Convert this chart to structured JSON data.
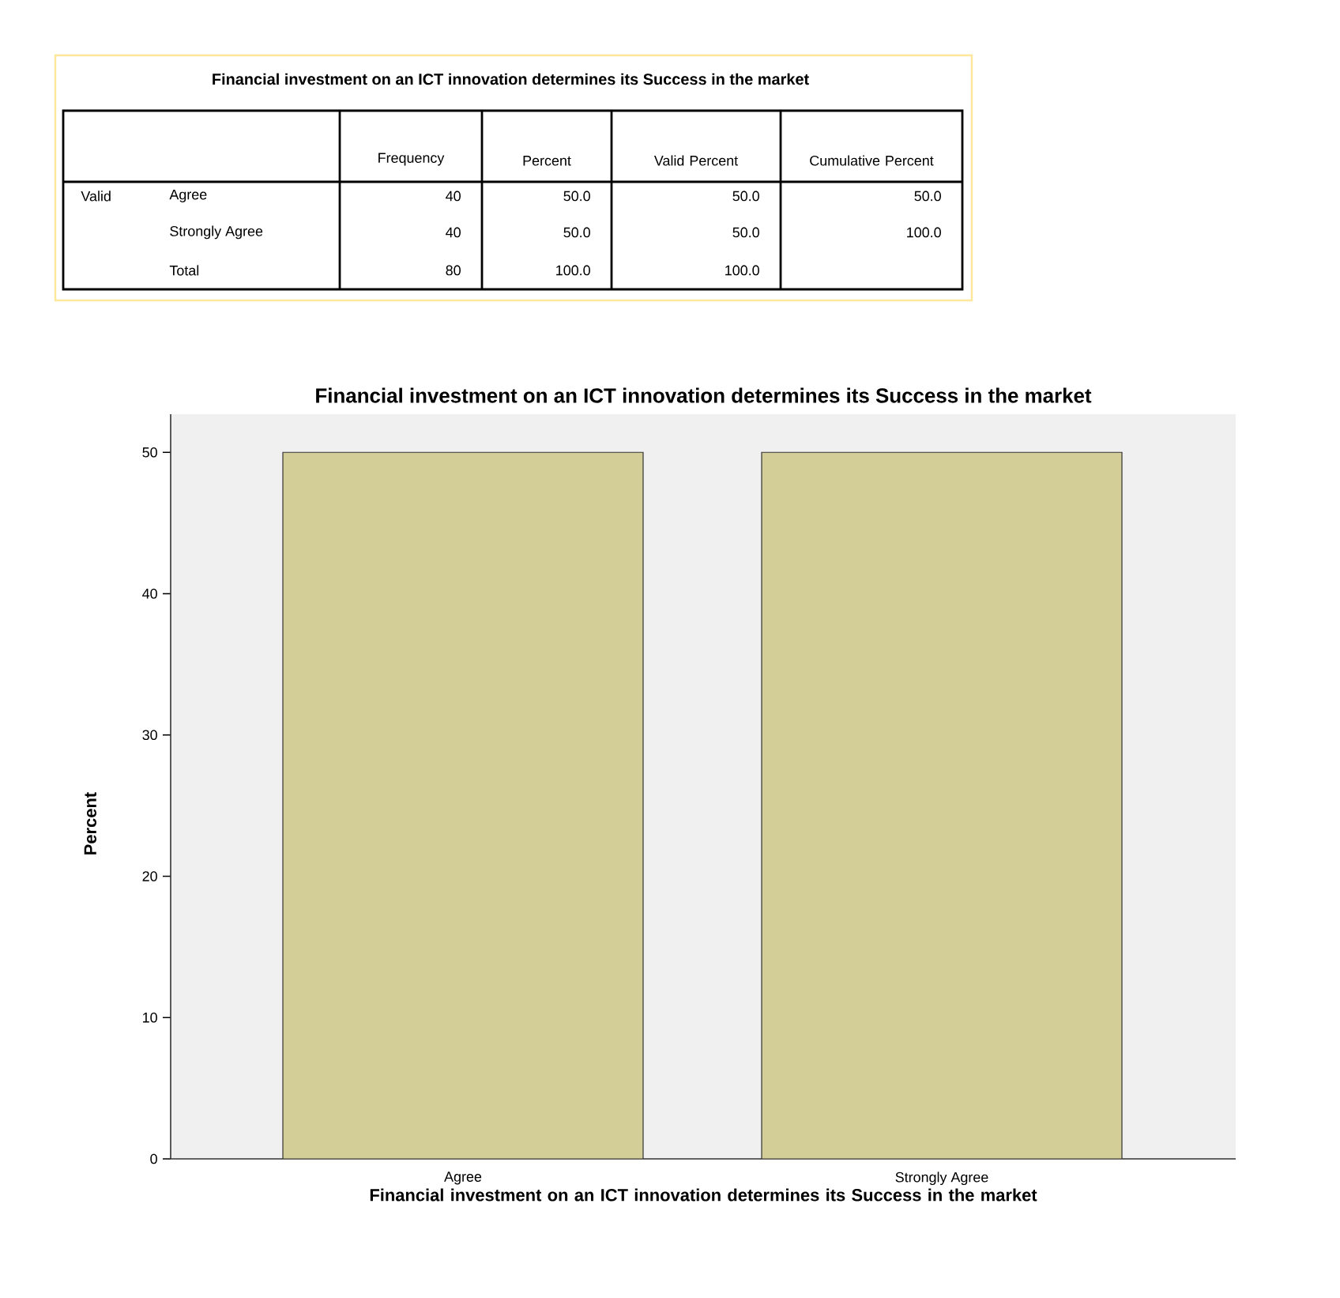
{
  "chart_data": [
    {
      "type": "other",
      "title": "Financial investment on an ICT innovation determines its Success in the market",
      "annotations": [
        "Frequency",
        "Percent",
        "Valid Percent",
        "Cumulative Percent",
        "Valid",
        "Agree",
        "40",
        "50.0",
        "50.0",
        "50.0",
        "Strongly Agree",
        "40",
        "50.0",
        "50.0",
        "100.0",
        "Total",
        "80",
        "100.0",
        "100.0"
      ]
    },
    {
      "type": "bar",
      "title": "Financial investment on an ICT innovation determines its Success in the market",
      "xlabel": "Financial investment on an ICT innovation determines its Success in the market",
      "ylabel": "Percent",
      "categories": [
        "Agree",
        "Strongly Agree"
      ],
      "values": [
        50,
        50
      ],
      "color": "#d3cd98",
      "ylim": [
        0,
        52.7
      ],
      "yticks": [
        0,
        10,
        20,
        30,
        40,
        50
      ],
      "grid": false
    }
  ]
}
